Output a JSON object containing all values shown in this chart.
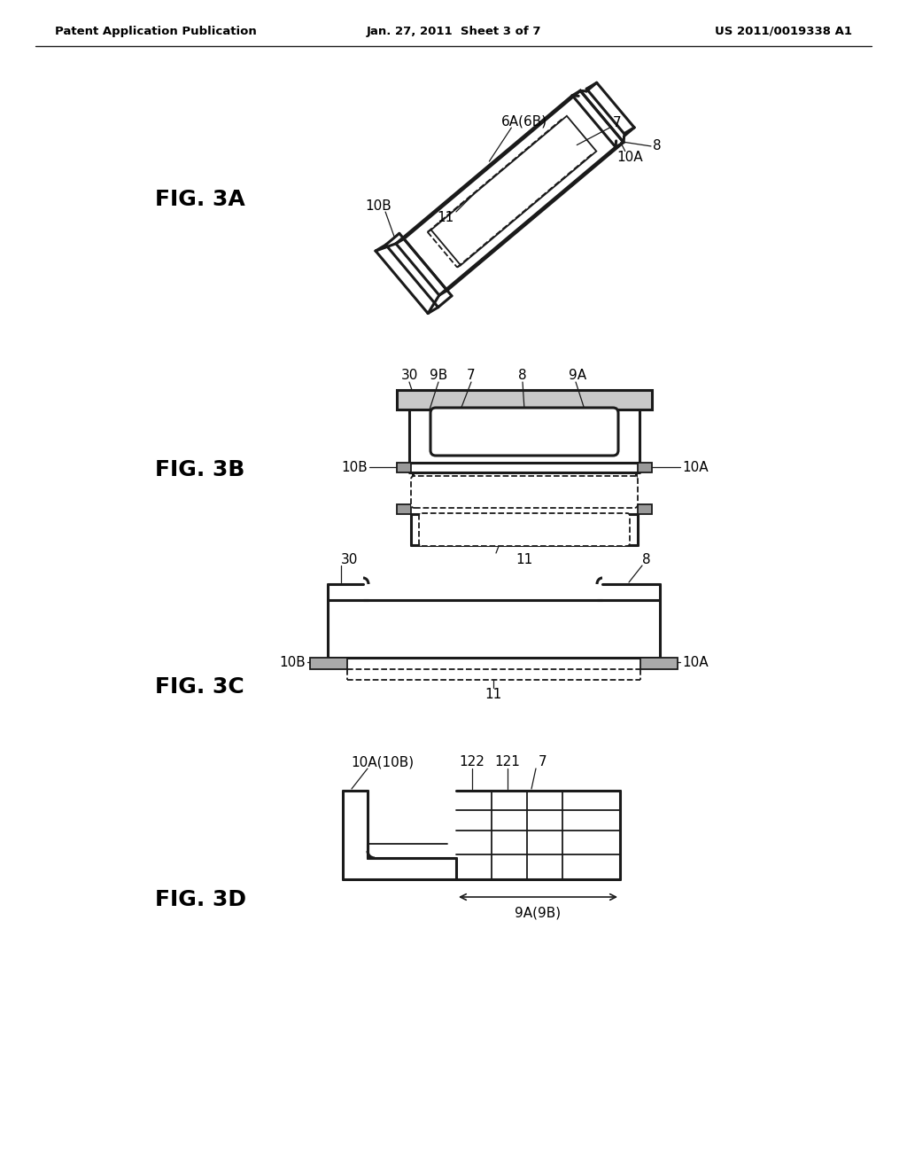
{
  "background_color": "#ffffff",
  "header_left": "Patent Application Publication",
  "header_center": "Jan. 27, 2011  Sheet 3 of 7",
  "header_right": "US 2011/0019338 A1",
  "fig3a_label": "FIG. 3A",
  "fig3b_label": "FIG. 3B",
  "fig3c_label": "FIG. 3C",
  "fig3d_label": "FIG. 3D",
  "line_color": "#1a1a1a"
}
